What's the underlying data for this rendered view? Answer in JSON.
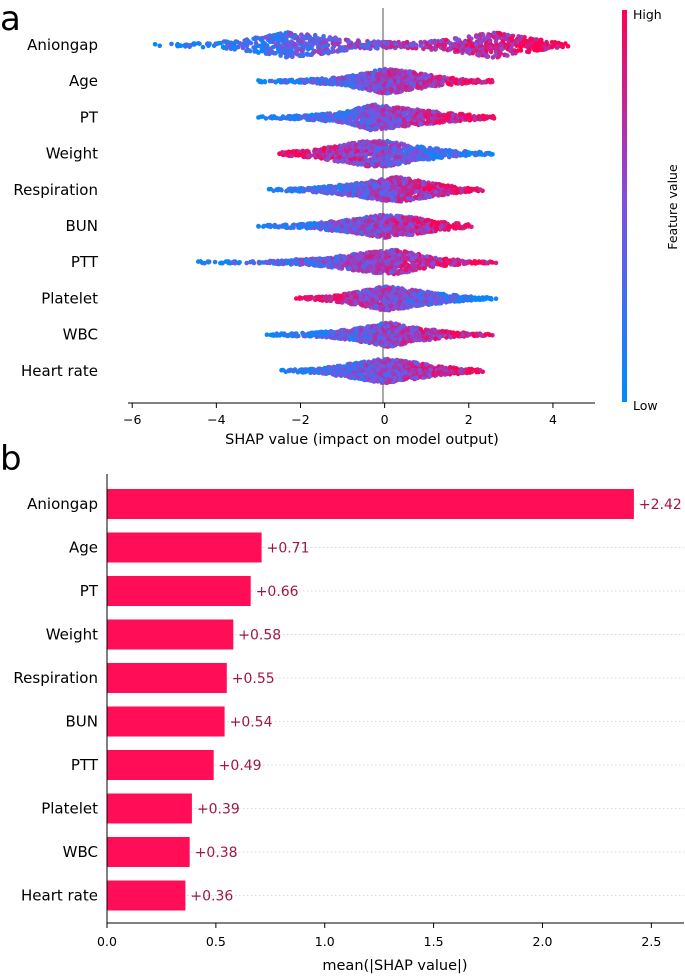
{
  "chart_data": [
    {
      "type": "scatter",
      "panel_label": "a",
      "title": "",
      "xlabel": "SHAP value (impact on model output)",
      "ylabel": "",
      "xlim": [
        -6.1,
        5.0
      ],
      "xticks": [
        -6,
        -4,
        -2,
        0,
        2,
        4
      ],
      "xtick_labels": [
        "−6",
        "−4",
        "−2",
        "0",
        "2",
        "4"
      ],
      "features": [
        {
          "name": "Aniongap",
          "min": -5.5,
          "max": 4.4,
          "spread": [
            [
              -5.5,
              0.05
            ],
            [
              -4,
              0.2
            ],
            [
              -3,
              0.6
            ],
            [
              -2.3,
              1.0
            ],
            [
              -1.5,
              0.7
            ],
            [
              -0.5,
              0.3
            ],
            [
              0.5,
              0.25
            ],
            [
              1.5,
              0.45
            ],
            [
              2.6,
              1.0
            ],
            [
              3.5,
              0.5
            ],
            [
              4.4,
              0.08
            ]
          ],
          "low_side": "left"
        },
        {
          "name": "Age",
          "min": -3.1,
          "max": 2.6,
          "spread": [
            [
              -3.1,
              0.05
            ],
            [
              -2.0,
              0.12
            ],
            [
              -1.0,
              0.3
            ],
            [
              0,
              0.95
            ],
            [
              0.5,
              0.8
            ],
            [
              1.2,
              0.4
            ],
            [
              2.0,
              0.15
            ],
            [
              2.6,
              0.05
            ]
          ],
          "low_side": "left"
        },
        {
          "name": "PT",
          "min": -3.0,
          "max": 2.8,
          "spread": [
            [
              -3.0,
              0.05
            ],
            [
              -2.0,
              0.15
            ],
            [
              -1.0,
              0.4
            ],
            [
              -0.3,
              1.0
            ],
            [
              0.5,
              0.7
            ],
            [
              1.5,
              0.35
            ],
            [
              2.3,
              0.15
            ],
            [
              2.8,
              0.04
            ]
          ],
          "low_side": "left"
        },
        {
          "name": "Weight",
          "min": -2.5,
          "max": 2.6,
          "spread": [
            [
              -2.5,
              0.1
            ],
            [
              -1.5,
              0.4
            ],
            [
              -0.5,
              0.95
            ],
            [
              0,
              1.0
            ],
            [
              0.8,
              0.55
            ],
            [
              1.6,
              0.25
            ],
            [
              2.6,
              0.06
            ]
          ],
          "low_side": "right"
        },
        {
          "name": "Respiration",
          "min": -2.8,
          "max": 2.4,
          "spread": [
            [
              -2.8,
              0.05
            ],
            [
              -1.8,
              0.15
            ],
            [
              -0.8,
              0.45
            ],
            [
              0.3,
              1.0
            ],
            [
              1.0,
              0.6
            ],
            [
              1.8,
              0.2
            ],
            [
              2.4,
              0.05
            ]
          ],
          "low_side": "left"
        },
        {
          "name": "BUN",
          "min": -3.0,
          "max": 2.1,
          "spread": [
            [
              -3.0,
              0.05
            ],
            [
              -1.8,
              0.2
            ],
            [
              -0.8,
              0.5
            ],
            [
              0,
              0.9
            ],
            [
              0.6,
              0.7
            ],
            [
              1.3,
              0.35
            ],
            [
              2.1,
              0.08
            ]
          ],
          "low_side": "left"
        },
        {
          "name": "PTT",
          "min": -4.5,
          "max": 2.7,
          "spread": [
            [
              -4.5,
              0.05
            ],
            [
              -3,
              0.08
            ],
            [
              -1.5,
              0.3
            ],
            [
              -0.3,
              0.8
            ],
            [
              0.3,
              0.95
            ],
            [
              1.2,
              0.35
            ],
            [
              2.0,
              0.12
            ],
            [
              2.7,
              0.04
            ]
          ],
          "low_side": "left"
        },
        {
          "name": "Platelet",
          "min": -2.1,
          "max": 2.7,
          "spread": [
            [
              -2.1,
              0.05
            ],
            [
              -1.3,
              0.2
            ],
            [
              -0.5,
              0.6
            ],
            [
              0,
              0.95
            ],
            [
              0.8,
              0.6
            ],
            [
              1.5,
              0.3
            ],
            [
              2.2,
              0.12
            ],
            [
              2.7,
              0.04
            ]
          ],
          "low_side": "right"
        },
        {
          "name": "WBC",
          "min": -2.8,
          "max": 2.6,
          "spread": [
            [
              -2.8,
              0.05
            ],
            [
              -1.8,
              0.15
            ],
            [
              -0.8,
              0.4
            ],
            [
              0.1,
              0.95
            ],
            [
              0.8,
              0.5
            ],
            [
              1.6,
              0.2
            ],
            [
              2.6,
              0.04
            ]
          ],
          "low_side": "left"
        },
        {
          "name": "Heart rate",
          "min": -2.5,
          "max": 2.4,
          "spread": [
            [
              -2.5,
              0.05
            ],
            [
              -1.5,
              0.2
            ],
            [
              -0.5,
              0.7
            ],
            [
              0,
              0.95
            ],
            [
              0.6,
              0.7
            ],
            [
              1.3,
              0.35
            ],
            [
              2.4,
              0.05
            ]
          ],
          "low_side": "left"
        }
      ],
      "colorbar": {
        "label": "Feature value",
        "high": "High",
        "low": "Low",
        "high_color": "#ff0052",
        "low_color": "#008bfb",
        "mid_color": "#7c52e0"
      }
    },
    {
      "type": "bar",
      "panel_label": "b",
      "orientation": "horizontal",
      "title": "",
      "xlabel": "mean(|SHAP value|)",
      "ylabel": "",
      "xlim": [
        0,
        2.65
      ],
      "xticks": [
        0.0,
        0.5,
        1.0,
        1.5,
        2.0,
        2.5
      ],
      "xtick_labels": [
        "0.0",
        "0.5",
        "1.0",
        "1.5",
        "2.0",
        "2.5"
      ],
      "categories": [
        "Aniongap",
        "Age",
        "PT",
        "Weight",
        "Respiration",
        "BUN",
        "PTT",
        "Platelet",
        "WBC",
        "Heart rate"
      ],
      "values": [
        2.42,
        0.71,
        0.66,
        0.58,
        0.55,
        0.54,
        0.49,
        0.39,
        0.38,
        0.36
      ],
      "value_labels": [
        "+2.42",
        "+0.71",
        "+0.66",
        "+0.58",
        "+0.55",
        "+0.54",
        "+0.49",
        "+0.39",
        "+0.38",
        "+0.36"
      ],
      "bar_color": "#ff0d57",
      "label_color": "#a01747"
    }
  ]
}
